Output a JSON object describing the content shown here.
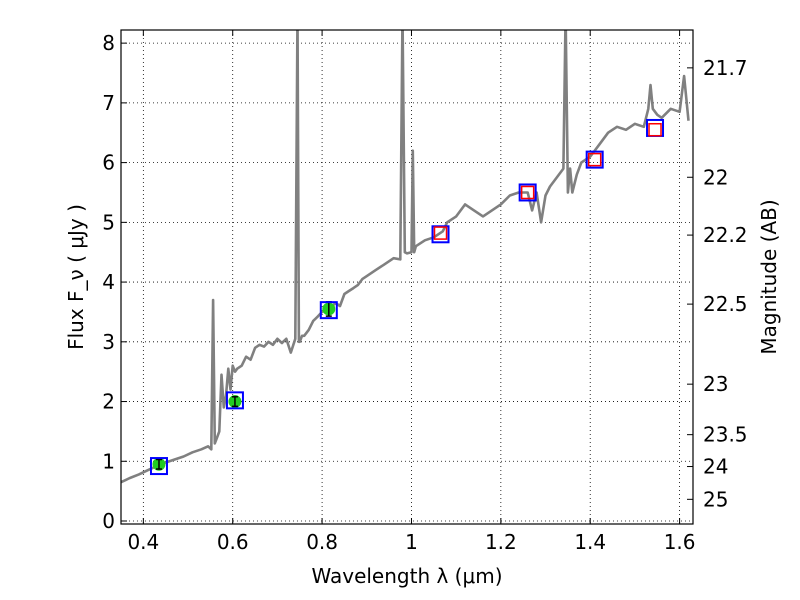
{
  "chart_data": {
    "type": "line",
    "xlabel": "Wavelength  λ (μm)",
    "ylabel": "Flux  F_ν  ( μJy )",
    "y2label": "Magnitude (AB)",
    "xlim": [
      0.35,
      1.63
    ],
    "ylim": [
      -0.05,
      8.22
    ],
    "x_ticks": [
      "0.4",
      "0.6",
      "0.8",
      "1",
      "1.2",
      "1.4",
      "1.6"
    ],
    "y_ticks": [
      "0",
      "1",
      "2",
      "3",
      "4",
      "5",
      "6",
      "7",
      "8"
    ],
    "mag_ticks": [
      "21.7",
      "22",
      "22.2",
      "22.5",
      "23",
      "23.5",
      "24",
      "25"
    ],
    "grid": true,
    "series": [
      {
        "kind": "spectrum",
        "color": "#808080",
        "x": [
          0.35,
          0.37,
          0.39,
          0.41,
          0.43,
          0.45,
          0.47,
          0.49,
          0.51,
          0.53,
          0.545,
          0.552,
          0.556,
          0.56,
          0.565,
          0.57,
          0.575,
          0.58,
          0.585,
          0.59,
          0.595,
          0.6,
          0.605,
          0.61,
          0.62,
          0.63,
          0.64,
          0.65,
          0.66,
          0.67,
          0.68,
          0.69,
          0.7,
          0.71,
          0.72,
          0.73,
          0.74,
          0.745,
          0.748,
          0.75,
          0.755,
          0.76,
          0.77,
          0.78,
          0.79,
          0.8,
          0.81,
          0.82,
          0.83,
          0.84,
          0.85,
          0.86,
          0.87,
          0.88,
          0.89,
          0.9,
          0.92,
          0.94,
          0.96,
          0.975,
          0.98,
          0.985,
          0.99,
          1.0,
          1.003,
          1.006,
          1.01,
          1.03,
          1.05,
          1.06,
          1.07,
          1.08,
          1.1,
          1.12,
          1.14,
          1.16,
          1.18,
          1.2,
          1.22,
          1.24,
          1.26,
          1.27,
          1.28,
          1.29,
          1.3,
          1.31,
          1.32,
          1.33,
          1.34,
          1.345,
          1.35,
          1.355,
          1.36,
          1.37,
          1.38,
          1.4,
          1.42,
          1.44,
          1.46,
          1.48,
          1.5,
          1.52,
          1.53,
          1.535,
          1.54,
          1.55,
          1.56,
          1.58,
          1.6,
          1.61,
          1.62
        ],
        "y": [
          0.65,
          0.72,
          0.78,
          0.85,
          0.92,
          0.98,
          1.03,
          1.08,
          1.15,
          1.2,
          1.25,
          1.2,
          3.7,
          1.3,
          1.4,
          1.5,
          2.45,
          1.9,
          2.1,
          2.55,
          2.2,
          2.6,
          2.5,
          2.55,
          2.6,
          2.75,
          2.7,
          2.9,
          2.95,
          2.92,
          3.0,
          2.95,
          3.05,
          2.98,
          3.05,
          2.82,
          3.05,
          8.5,
          3.0,
          3.0,
          3.1,
          3.1,
          3.2,
          3.35,
          3.42,
          3.5,
          3.55,
          3.58,
          3.65,
          3.6,
          3.8,
          3.85,
          3.9,
          3.95,
          4.05,
          4.1,
          4.2,
          4.3,
          4.4,
          4.38,
          8.5,
          4.5,
          4.48,
          4.5,
          6.2,
          4.5,
          4.6,
          4.7,
          4.75,
          4.8,
          4.85,
          5.0,
          5.1,
          5.3,
          5.2,
          5.1,
          5.2,
          5.3,
          5.45,
          5.5,
          5.5,
          5.2,
          5.5,
          5.0,
          5.45,
          5.6,
          5.7,
          5.8,
          5.9,
          8.5,
          5.5,
          5.9,
          5.5,
          5.8,
          6.0,
          6.1,
          6.3,
          6.5,
          6.6,
          6.55,
          6.65,
          6.6,
          6.9,
          7.3,
          6.9,
          6.8,
          6.75,
          6.9,
          6.85,
          7.45,
          6.7
        ]
      },
      {
        "kind": "observed",
        "color": "#22cc22",
        "x": [
          0.435,
          0.605,
          0.815
        ],
        "y": [
          0.95,
          2.0,
          3.55
        ],
        "yerr": [
          0.08,
          0.08,
          0.12
        ]
      },
      {
        "kind": "model_blue_squares",
        "color": "#0000ff",
        "x": [
          0.435,
          0.605,
          0.815,
          1.065,
          1.26,
          1.41,
          1.545
        ],
        "y": [
          0.92,
          2.02,
          3.53,
          4.8,
          5.5,
          6.05,
          6.58
        ]
      },
      {
        "kind": "model_red_squares",
        "color": "#ff0000",
        "x": [
          1.065,
          1.26,
          1.41,
          1.545
        ],
        "y": [
          4.82,
          5.5,
          6.05,
          6.55
        ]
      }
    ]
  }
}
